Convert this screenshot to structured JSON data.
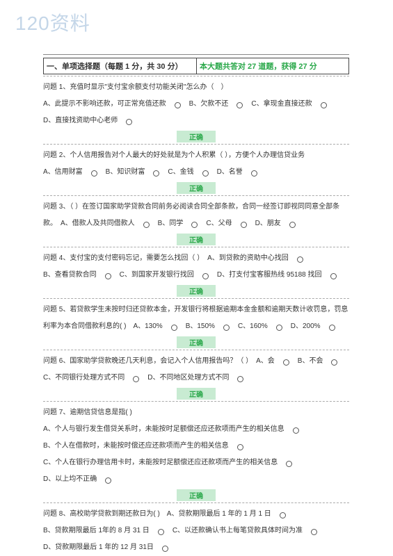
{
  "watermark": "120资料",
  "header": {
    "left": "一、单项选择题（每题 1 分，共 30 分）",
    "right": "本大题共答对 27 道题，获得 27 分"
  },
  "correct_label": "正确",
  "questions": [
    {
      "stem": "问题 1、充值时显示\"支付宝余额支付功能关闭\"怎么办（　）",
      "opts": [
        "A、此提示不影响还款，可正常充值还款",
        "B、欠款不还",
        "C、拿现金直接还款",
        "D、直接找资助中心老师"
      ],
      "show_correct": true
    },
    {
      "stem": "问题 2、个人信用报告对个人最大的好处就是为个人积累（ ），方便个人办理信贷业务",
      "opts": [
        "A、信用财富",
        "B、知识财富",
        "C、金钱",
        "D、名誉"
      ],
      "show_correct": true
    },
    {
      "stem": "问题 3、（ ）在签订国家助学贷款合同前务必阅读合同全部条款，合同一经签订即视同同意全部条款。",
      "opts": [
        "A、借款人及共同借款人",
        "B、同学",
        "C、父母",
        "D、朋友"
      ],
      "show_correct": true
    },
    {
      "stem": "问题 4、支付宝的支付密码忘记，需要怎么找回（ ）",
      "opts": [
        "A、到贷款的资助中心找回",
        "B、查看贷款合同",
        "C、到国家开发银行找回",
        "D、打支付宝客服热线 95188 找回"
      ],
      "show_correct": true
    },
    {
      "stem": "问题 5、若贷款学生未按时归还贷款本金，开发银行将根据逾期本金金额和逾期天数计收罚息，罚息利率为本合同借款利息的( )",
      "opts": [
        "A、130%",
        "B、150%",
        "C、160%",
        "D、200%"
      ],
      "show_correct": true
    },
    {
      "stem": "问题 6、国家助学贷款晚还几天利息，会记入个人信用报告吗？（ ）",
      "opts": [
        "A、会",
        "B、不会",
        "C、不同银行处理方式不同",
        "D、不同地区处理方式不同"
      ],
      "show_correct": true
    },
    {
      "stem": "问题 7、逾期信贷信息是指( )",
      "opts": [
        "A、个人与银行发生借贷关系时，未能按时足额偿还应还款项而产生的相关信息",
        "B、个人在借款时，未能按时偿还应还款项而产生的相关信息",
        "C、个人在银行办理信用卡时，未能按时足额偿还应还款项而产生的相关信息",
        "D、以上均不正确"
      ],
      "show_correct": true
    },
    {
      "stem": "问题 8、高校助学贷款到期还款日为( )",
      "opts": [
        "A、贷款期限最后 1 年的 1 月 1 日",
        "B、贷款期限最后 1年的 8 月 31 日",
        "C、以还款确认书上每笔贷款具体时间为准",
        "D、贷款期限最后 1 年的 12 月 31日"
      ],
      "show_correct": false
    }
  ]
}
